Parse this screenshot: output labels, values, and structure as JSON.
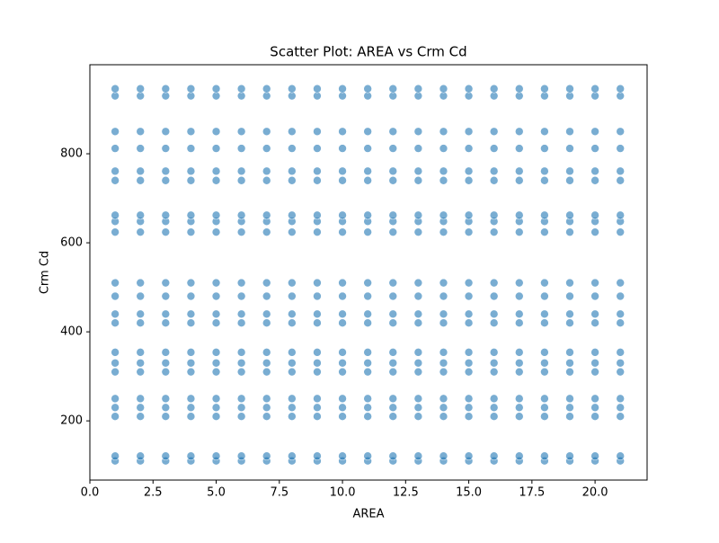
{
  "chart_data": {
    "type": "scatter",
    "title": "Scatter Plot: AREA vs Crm Cd",
    "x_label": "AREA",
    "y_label": "Crm Cd",
    "color": "#1f77b4",
    "xlim": [
      0,
      22.06
    ],
    "ylim": [
      67,
      1000
    ],
    "xticks": [
      {
        "value": 0,
        "label": "0.0"
      },
      {
        "value": 2.5,
        "label": "2.5"
      },
      {
        "value": 5,
        "label": "5.0"
      },
      {
        "value": 7.5,
        "label": "7.5"
      },
      {
        "value": 10,
        "label": "10.0"
      },
      {
        "value": 12.5,
        "label": "12.5"
      },
      {
        "value": 15,
        "label": "15.0"
      },
      {
        "value": 17.5,
        "label": "17.5"
      },
      {
        "value": 20,
        "label": "20.0"
      }
    ],
    "yticks": [
      200,
      400,
      600,
      800
    ],
    "x": [
      1,
      1,
      1,
      1,
      1,
      1,
      1,
      1,
      1,
      1,
      1,
      1,
      1,
      1,
      1,
      1,
      1,
      1,
      1,
      1,
      1,
      2,
      2,
      2,
      2,
      2,
      2,
      2,
      2,
      2,
      2,
      2,
      2,
      2,
      2,
      2,
      2,
      2,
      2,
      2,
      2,
      2,
      3,
      3,
      3,
      3,
      3,
      3,
      3,
      3,
      3,
      3,
      3,
      3,
      3,
      3,
      3,
      3,
      3,
      3,
      3,
      3,
      3,
      4,
      4,
      4,
      4,
      4,
      4,
      4,
      4,
      4,
      4,
      4,
      4,
      4,
      4,
      4,
      4,
      4,
      4,
      4,
      4,
      4,
      5,
      5,
      5,
      5,
      5,
      5,
      5,
      5,
      5,
      5,
      5,
      5,
      5,
      5,
      5,
      5,
      5,
      5,
      5,
      5,
      5,
      6,
      6,
      6,
      6,
      6,
      6,
      6,
      6,
      6,
      6,
      6,
      6,
      6,
      6,
      6,
      6,
      6,
      6,
      6,
      6,
      6,
      7,
      7,
      7,
      7,
      7,
      7,
      7,
      7,
      7,
      7,
      7,
      7,
      7,
      7,
      7,
      7,
      7,
      7,
      7,
      7,
      7,
      8,
      8,
      8,
      8,
      8,
      8,
      8,
      8,
      8,
      8,
      8,
      8,
      8,
      8,
      8,
      8,
      8,
      8,
      8,
      8,
      8,
      9,
      9,
      9,
      9,
      9,
      9,
      9,
      9,
      9,
      9,
      9,
      9,
      9,
      9,
      9,
      9,
      9,
      9,
      9,
      9,
      9,
      10,
      10,
      10,
      10,
      10,
      10,
      10,
      10,
      10,
      10,
      10,
      10,
      10,
      10,
      10,
      10,
      10,
      10,
      10,
      10,
      10,
      11,
      11,
      11,
      11,
      11,
      11,
      11,
      11,
      11,
      11,
      11,
      11,
      11,
      11,
      11,
      11,
      11,
      11,
      11,
      11,
      11,
      12,
      12,
      12,
      12,
      12,
      12,
      12,
      12,
      12,
      12,
      12,
      12,
      12,
      12,
      12,
      12,
      12,
      12,
      12,
      12,
      12,
      13,
      13,
      13,
      13,
      13,
      13,
      13,
      13,
      13,
      13,
      13,
      13,
      13,
      13,
      13,
      13,
      13,
      13,
      13,
      13,
      13,
      14,
      14,
      14,
      14,
      14,
      14,
      14,
      14,
      14,
      14,
      14,
      14,
      14,
      14,
      14,
      14,
      14,
      14,
      14,
      14,
      14,
      15,
      15,
      15,
      15,
      15,
      15,
      15,
      15,
      15,
      15,
      15,
      15,
      15,
      15,
      15,
      15,
      15,
      15,
      15,
      15,
      15,
      16,
      16,
      16,
      16,
      16,
      16,
      16,
      16,
      16,
      16,
      16,
      16,
      16,
      16,
      16,
      16,
      16,
      16,
      16,
      16,
      16,
      17,
      17,
      17,
      17,
      17,
      17,
      17,
      17,
      17,
      17,
      17,
      17,
      17,
      17,
      17,
      17,
      17,
      17,
      17,
      17,
      17,
      18,
      18,
      18,
      18,
      18,
      18,
      18,
      18,
      18,
      18,
      18,
      18,
      18,
      18,
      18,
      18,
      18,
      18,
      18,
      18,
      18,
      19,
      19,
      19,
      19,
      19,
      19,
      19,
      19,
      19,
      19,
      19,
      19,
      19,
      19,
      19,
      19,
      19,
      19,
      19,
      19,
      19,
      20,
      20,
      20,
      20,
      20,
      20,
      20,
      20,
      20,
      20,
      20,
      20,
      20,
      20,
      20,
      20,
      20,
      20,
      20,
      20,
      20,
      21,
      21,
      21,
      21,
      21,
      21,
      21,
      21,
      21,
      21,
      21,
      21,
      21,
      21,
      21,
      21,
      21,
      21,
      21,
      21,
      21
    ],
    "y": [
      110,
      121,
      210,
      230,
      250,
      310,
      330,
      354,
      420,
      440,
      480,
      510,
      624,
      648,
      662,
      740,
      761,
      812,
      850,
      930,
      946,
      110,
      121,
      210,
      230,
      250,
      310,
      330,
      354,
      420,
      440,
      480,
      510,
      624,
      648,
      662,
      740,
      761,
      812,
      850,
      930,
      946,
      110,
      121,
      210,
      230,
      250,
      310,
      330,
      354,
      420,
      440,
      480,
      510,
      624,
      648,
      662,
      740,
      761,
      812,
      850,
      930,
      946,
      110,
      121,
      210,
      230,
      250,
      310,
      330,
      354,
      420,
      440,
      480,
      510,
      624,
      648,
      662,
      740,
      761,
      812,
      850,
      930,
      946,
      110,
      121,
      210,
      230,
      250,
      310,
      330,
      354,
      420,
      440,
      480,
      510,
      624,
      648,
      662,
      740,
      761,
      812,
      850,
      930,
      946,
      110,
      121,
      210,
      230,
      250,
      310,
      330,
      354,
      420,
      440,
      480,
      510,
      624,
      648,
      662,
      740,
      761,
      812,
      850,
      930,
      946,
      110,
      121,
      210,
      230,
      250,
      310,
      330,
      354,
      420,
      440,
      480,
      510,
      624,
      648,
      662,
      740,
      761,
      812,
      850,
      930,
      946,
      110,
      121,
      210,
      230,
      250,
      310,
      330,
      354,
      420,
      440,
      480,
      510,
      624,
      648,
      662,
      740,
      761,
      812,
      850,
      930,
      946,
      110,
      121,
      210,
      230,
      250,
      310,
      330,
      354,
      420,
      440,
      480,
      510,
      624,
      648,
      662,
      740,
      761,
      812,
      850,
      930,
      946,
      110,
      121,
      210,
      230,
      250,
      310,
      330,
      354,
      420,
      440,
      480,
      510,
      624,
      648,
      662,
      740,
      761,
      812,
      850,
      930,
      946,
      110,
      121,
      210,
      230,
      250,
      310,
      330,
      354,
      420,
      440,
      480,
      510,
      624,
      648,
      662,
      740,
      761,
      812,
      850,
      930,
      946,
      110,
      121,
      210,
      230,
      250,
      310,
      330,
      354,
      420,
      440,
      480,
      510,
      624,
      648,
      662,
      740,
      761,
      812,
      850,
      930,
      946,
      110,
      121,
      210,
      230,
      250,
      310,
      330,
      354,
      420,
      440,
      480,
      510,
      624,
      648,
      662,
      740,
      761,
      812,
      850,
      930,
      946,
      110,
      121,
      210,
      230,
      250,
      310,
      330,
      354,
      420,
      440,
      480,
      510,
      624,
      648,
      662,
      740,
      761,
      812,
      850,
      930,
      946,
      110,
      121,
      210,
      230,
      250,
      310,
      330,
      354,
      420,
      440,
      480,
      510,
      624,
      648,
      662,
      740,
      761,
      812,
      850,
      930,
      946,
      110,
      121,
      210,
      230,
      250,
      310,
      330,
      354,
      420,
      440,
      480,
      510,
      624,
      648,
      662,
      740,
      761,
      812,
      850,
      930,
      946,
      110,
      121,
      210,
      230,
      250,
      310,
      330,
      354,
      420,
      440,
      480,
      510,
      624,
      648,
      662,
      740,
      761,
      812,
      850,
      930,
      946,
      110,
      121,
      210,
      230,
      250,
      310,
      330,
      354,
      420,
      440,
      480,
      510,
      624,
      648,
      662,
      740,
      761,
      812,
      850,
      930,
      946,
      110,
      121,
      210,
      230,
      250,
      310,
      330,
      354,
      420,
      440,
      480,
      510,
      624,
      648,
      662,
      740,
      761,
      812,
      850,
      930,
      946,
      110,
      121,
      210,
      230,
      250,
      310,
      330,
      354,
      420,
      440,
      480,
      510,
      624,
      648,
      662,
      740,
      761,
      812,
      850,
      930,
      946,
      110,
      121,
      210,
      230,
      250,
      310,
      330,
      354,
      420,
      440,
      480,
      510,
      624,
      648,
      662,
      740,
      761,
      812,
      850,
      930,
      946
    ]
  }
}
